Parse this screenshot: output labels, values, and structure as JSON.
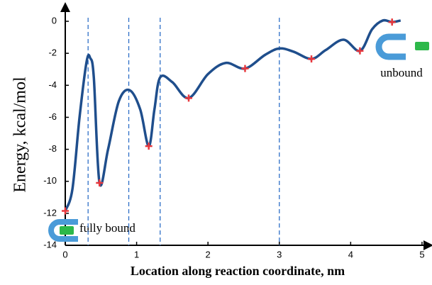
{
  "chart_data": {
    "type": "line",
    "ylabel": "Energy, kcal/mol",
    "xlabel": "Location along reaction coordinate, nm",
    "curve": {
      "color": "#1f4e8c",
      "x": [
        0,
        0.1,
        0.2,
        0.3,
        0.35,
        0.4,
        0.48,
        0.6,
        0.75,
        0.9,
        1.05,
        1.17,
        1.25,
        1.33,
        1.5,
        1.73,
        2.0,
        2.25,
        2.52,
        2.8,
        3.0,
        3.2,
        3.45,
        3.65,
        3.9,
        4.13,
        4.3,
        4.45,
        4.58,
        4.7
      ],
      "y": [
        -11.85,
        -10.5,
        -6,
        -2.5,
        -2.3,
        -3.5,
        -10.1,
        -8,
        -5,
        -4.3,
        -5.5,
        -7.8,
        -5.5,
        -3.5,
        -3.8,
        -4.8,
        -3.3,
        -2.6,
        -2.95,
        -2.1,
        -1.7,
        -1.9,
        -2.35,
        -1.8,
        -1.15,
        -1.85,
        -0.5,
        0.05,
        -0.05,
        0.05
      ]
    },
    "markers": {
      "color": "#e8383d",
      "x": [
        0,
        0.48,
        1.17,
        1.73,
        2.52,
        3.45,
        4.13,
        4.58
      ],
      "y": [
        -11.85,
        -10.1,
        -7.8,
        -4.8,
        -2.95,
        -2.35,
        -1.85,
        -0.05
      ]
    },
    "vlines": {
      "color": "#2e6fc7",
      "x": [
        0.32,
        0.89,
        1.33,
        3.0
      ]
    },
    "annotations": [
      "unbound",
      "fully bound"
    ],
    "xlim": [
      0,
      5.1
    ],
    "ylim": [
      -14,
      0.8
    ],
    "xticks": [
      0,
      1,
      2,
      3,
      4,
      5
    ],
    "yticks": [
      0,
      -2,
      -4,
      -6,
      -8,
      -10,
      -12,
      -14
    ]
  }
}
